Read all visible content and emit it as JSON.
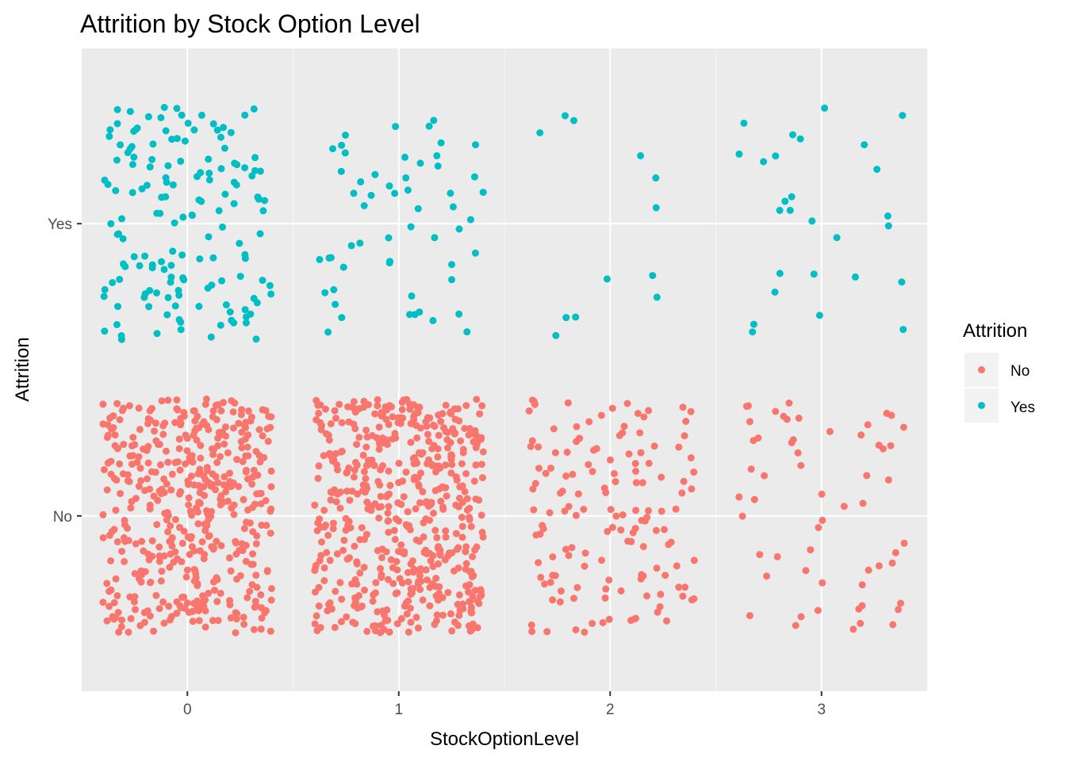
{
  "chart_data": {
    "type": "scatter",
    "title": "Attrition by Stock Option Level",
    "xlabel": "StockOptionLevel",
    "ylabel": "Attrition",
    "xlim": [
      -0.5,
      3.5
    ],
    "x_ticks": [
      0,
      1,
      2,
      3
    ],
    "x_tick_labels": [
      "0",
      "1",
      "2",
      "3"
    ],
    "y_categories": [
      "No",
      "Yes"
    ],
    "jitter": {
      "x": 0.4,
      "y": 0.4
    },
    "grid": true,
    "legend": {
      "title": "Attrition",
      "placement": "right",
      "entries": [
        {
          "label": "No",
          "color": "#F8766D"
        },
        {
          "label": "Yes",
          "color": "#00BFC4"
        }
      ]
    },
    "counts": [
      {
        "stock_option_level": 0,
        "attrition": "No",
        "n": 477
      },
      {
        "stock_option_level": 0,
        "attrition": "Yes",
        "n": 154
      },
      {
        "stock_option_level": 1,
        "attrition": "No",
        "n": 540
      },
      {
        "stock_option_level": 1,
        "attrition": "Yes",
        "n": 56
      },
      {
        "stock_option_level": 2,
        "attrition": "No",
        "n": 146
      },
      {
        "stock_option_level": 2,
        "attrition": "Yes",
        "n": 12
      },
      {
        "stock_option_level": 3,
        "attrition": "No",
        "n": 58
      },
      {
        "stock_option_level": 3,
        "attrition": "Yes",
        "n": 27
      }
    ]
  },
  "colors": {
    "panel_background": "#EBEBEB",
    "grid_major": "#FFFFFF",
    "grid_minor": "#F5F5F5",
    "tick_text": "#4D4D4D",
    "tick_mark": "#333333"
  }
}
